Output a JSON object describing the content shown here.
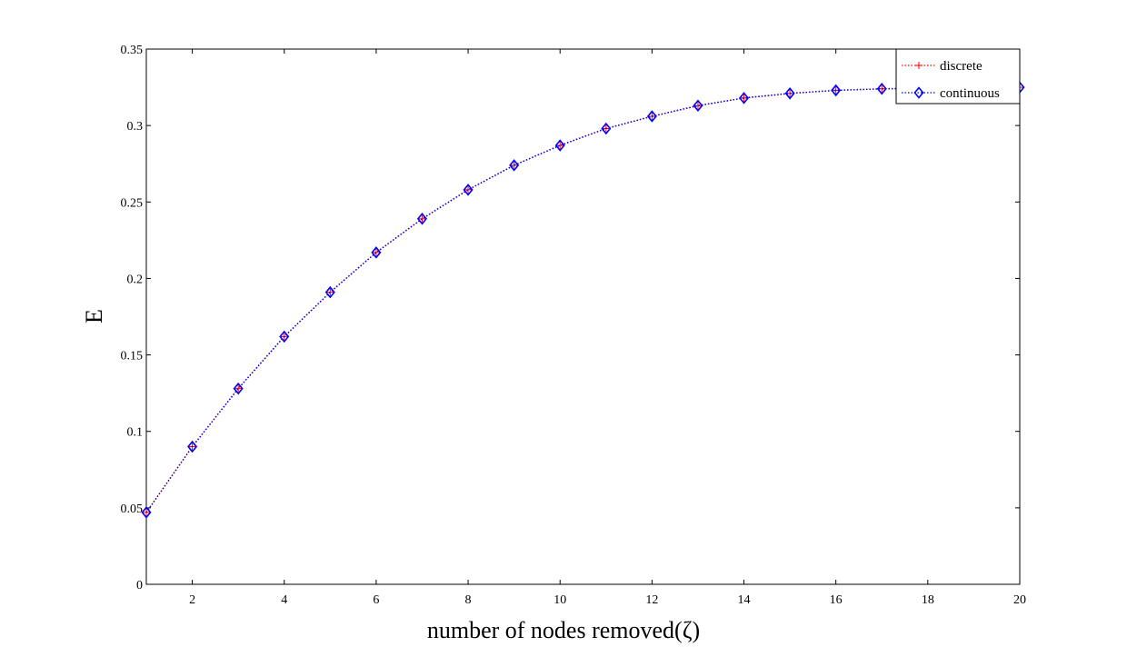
{
  "chart_data": {
    "type": "line",
    "title": "",
    "xlabel": "number of nodes removed(ζ)",
    "ylabel": "E",
    "xlim": [
      1,
      20
    ],
    "ylim": [
      0,
      0.35
    ],
    "xticks": [
      2,
      4,
      6,
      8,
      10,
      12,
      14,
      16,
      18,
      20
    ],
    "xtick_labels": [
      "2",
      "4",
      "6",
      "8",
      "10",
      "12",
      "14",
      "16",
      "18",
      "20"
    ],
    "yticks": [
      0,
      0.05,
      0.1,
      0.15,
      0.2,
      0.25,
      0.3,
      0.35
    ],
    "ytick_labels": [
      "0",
      "0.05",
      "0.1",
      "0.15",
      "0.2",
      "0.25",
      "0.3",
      "0.35"
    ],
    "grid": false,
    "legend_position": "top-right",
    "x": [
      1,
      2,
      3,
      4,
      5,
      6,
      7,
      8,
      9,
      10,
      11,
      12,
      13,
      14,
      15,
      16,
      17,
      18,
      19,
      20
    ],
    "series": [
      {
        "name": "discrete",
        "color": "#ff0000",
        "marker": "plus",
        "line_style": "dotted",
        "values": [
          0.047,
          0.09,
          0.128,
          0.162,
          0.191,
          0.217,
          0.239,
          0.258,
          0.274,
          0.287,
          0.298,
          0.306,
          0.313,
          0.318,
          0.321,
          0.323,
          0.324,
          0.3245,
          0.3248,
          0.325
        ]
      },
      {
        "name": "continuous",
        "color": "#0000ff",
        "marker": "diamond",
        "line_style": "dotted",
        "values": [
          0.047,
          0.09,
          0.128,
          0.162,
          0.191,
          0.217,
          0.239,
          0.258,
          0.274,
          0.287,
          0.298,
          0.306,
          0.313,
          0.318,
          0.321,
          0.323,
          0.324,
          0.3245,
          0.3248,
          0.325
        ]
      }
    ]
  }
}
